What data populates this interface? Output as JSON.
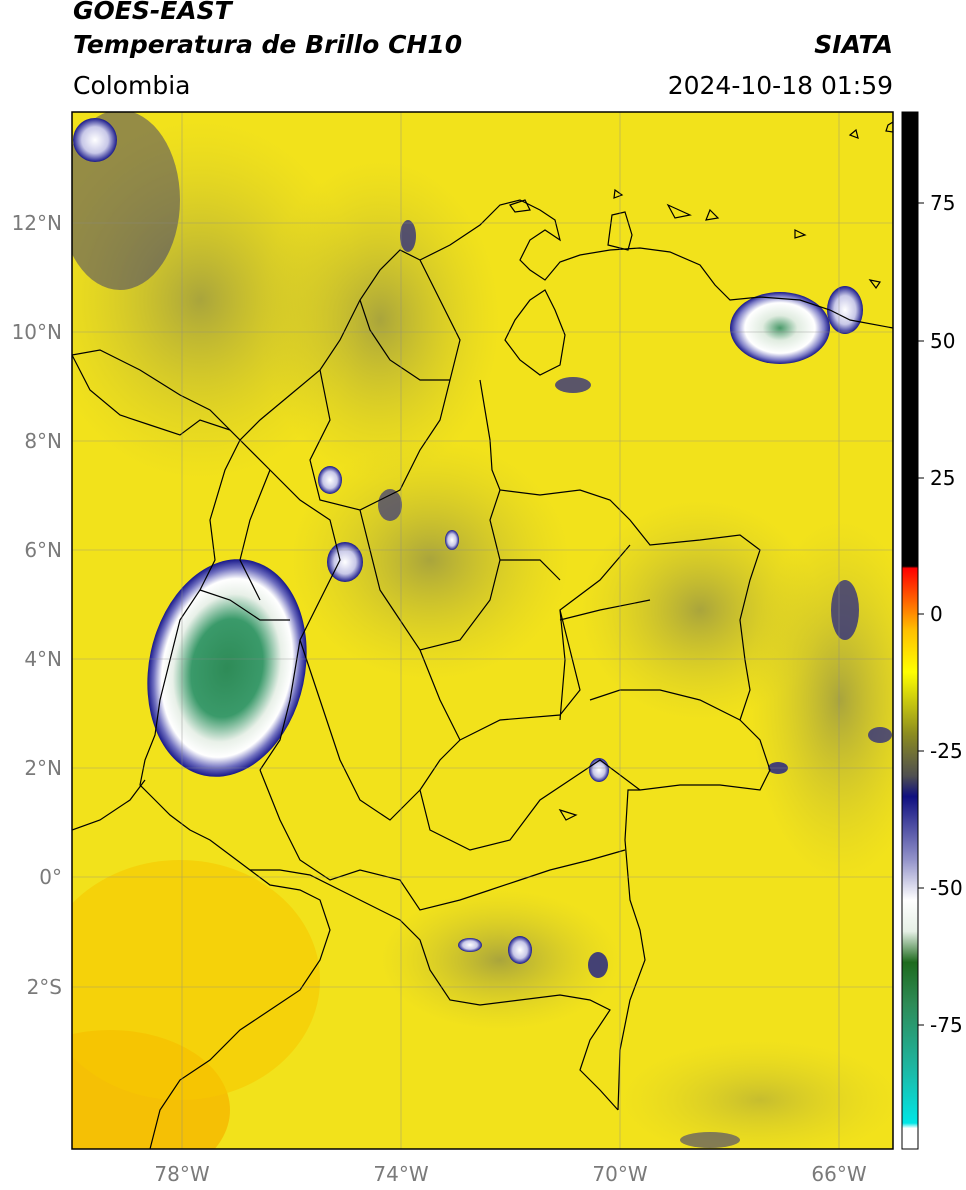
{
  "header": {
    "satellite": "GOES-EAST",
    "product": "Temperatura de Brillo CH10",
    "region": "Colombia",
    "agency": "SIATA",
    "datetime": "2024-10-18 01:59"
  },
  "map": {
    "lat_ticks": [
      "12°N",
      "10°N",
      "8°N",
      "6°N",
      "4°N",
      "2°N",
      "0°",
      "2°S"
    ],
    "lon_ticks": [
      "78°W",
      "74°W",
      "70°W",
      "66°W"
    ],
    "extent": {
      "lon_min": -80,
      "lon_max": -65,
      "lat_min": -5,
      "lat_max": 14
    },
    "background_color": "#f2e21b"
  },
  "colorbar": {
    "ticks": [
      "75",
      "50",
      "25",
      "0",
      "-25",
      "-50",
      "-75"
    ],
    "range": [
      -96,
      90
    ],
    "units_hint": "°C"
  }
}
